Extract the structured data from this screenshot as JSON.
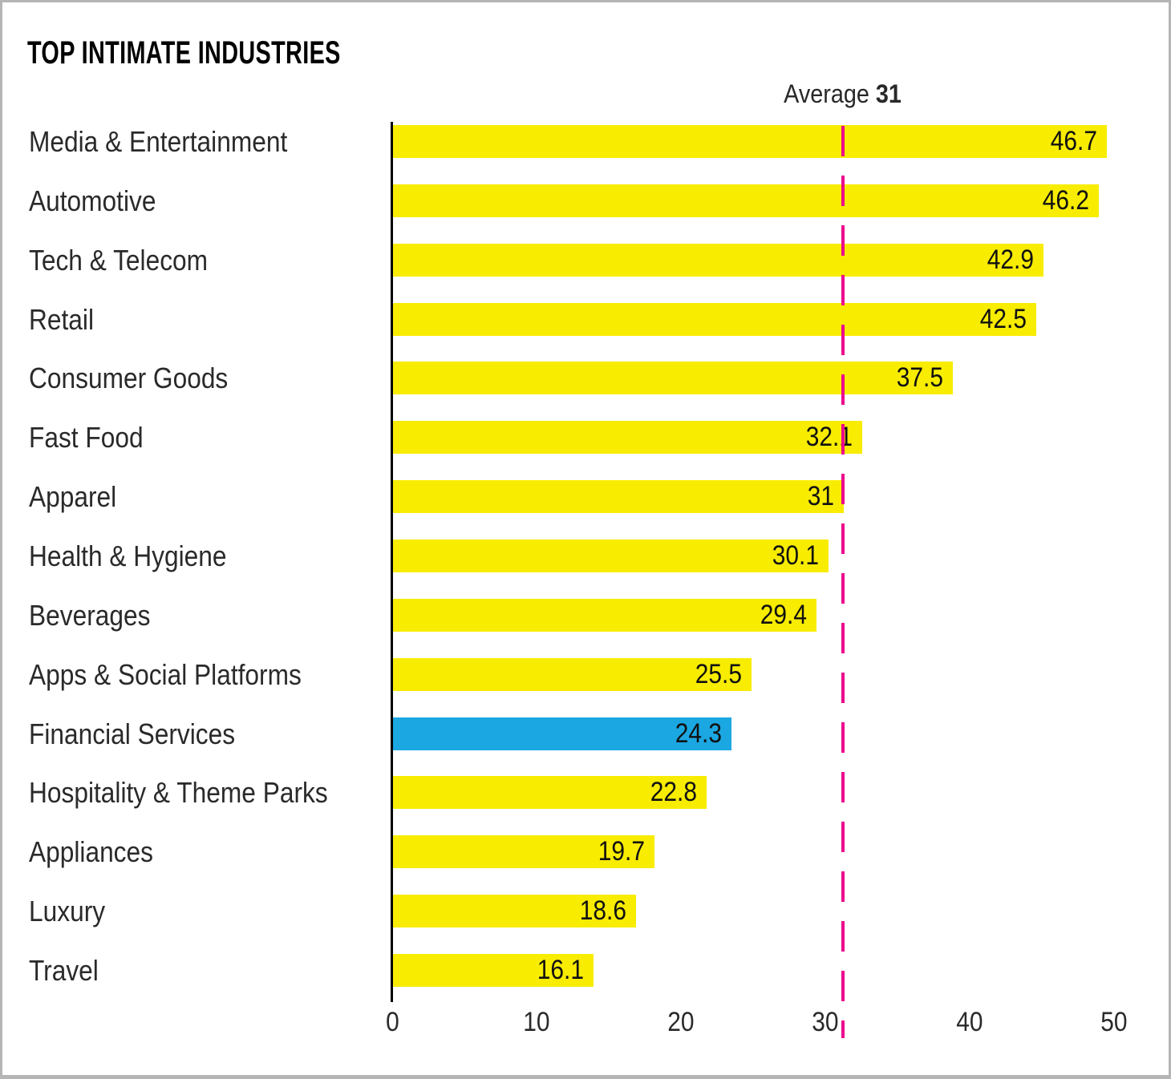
{
  "title": "TOP INTIMATE INDUSTRIES",
  "average": {
    "prefix": "Average",
    "value": "31"
  },
  "chart_data": {
    "type": "bar",
    "orientation": "horizontal",
    "title": "TOP INTIMATE INDUSTRIES",
    "categories": [
      "Media & Entertainment",
      "Automotive",
      "Tech & Telecom",
      "Retail",
      "Consumer Goods",
      "Fast Food",
      "Apparel",
      "Health & Hygiene",
      "Beverages",
      "Apps & Social Platforms",
      "Financial Services",
      "Hospitality & Theme Parks",
      "Appliances",
      "Luxury",
      "Travel"
    ],
    "values": [
      46.7,
      46.2,
      42.9,
      42.5,
      37.5,
      32.1,
      31,
      30.1,
      29.4,
      25.5,
      24.3,
      22.8,
      19.7,
      18.6,
      16.1
    ],
    "highlighted_category": "Financial Services",
    "average_line": 31,
    "average_annotation": "Average 31",
    "x_ticks": [
      0,
      10,
      20,
      30,
      40,
      50
    ],
    "xlim": [
      0,
      50
    ],
    "grid": "off",
    "legend": "none",
    "value_labels": "inside-end",
    "colors": {
      "bar": "#F8EC00",
      "highlight": "#1BA7E2",
      "average_line": "#EC008C",
      "axis": "#000000",
      "text": "#2A2A2A",
      "frame_border": "#B5B5B5"
    }
  }
}
